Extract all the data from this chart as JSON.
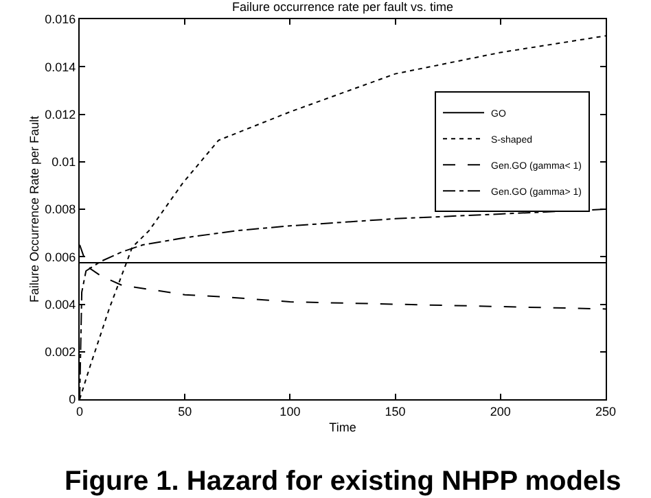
{
  "chart_data": {
    "type": "line",
    "title": "Failure occurrence rate per fault vs. time",
    "xlabel": "Time",
    "ylabel": "Failure Occurrence Rate per Fault",
    "annotations": [
      "Figure 1. Hazard for existing NHPP models"
    ],
    "xlim": [
      0,
      250
    ],
    "xticks": [
      0,
      50,
      100,
      150,
      200,
      250
    ],
    "ylim": [
      0,
      0.016
    ],
    "yticks": [
      0,
      0.002,
      0.004,
      0.006,
      0.008,
      0.01,
      0.012,
      0.014,
      0.016
    ],
    "grid": false,
    "legend": "top right",
    "marker": "none",
    "series": [
      {
        "name": "GO",
        "color": "#000000",
        "line_style": "solid",
        "x": [
          0,
          250
        ],
        "values": [
          0.00575,
          0.00575
        ]
      },
      {
        "name": "S-shaped",
        "color": "#000000",
        "line_style": "dotted",
        "x": [
          0,
          5,
          14,
          25,
          33,
          49,
          66,
          100,
          150,
          200,
          250
        ],
        "values": [
          0,
          0.0014,
          0.0038,
          0.0064,
          0.0071,
          0.0091,
          0.0109,
          0.0121,
          0.0137,
          0.0146,
          0.0153
        ]
      },
      {
        "name": "Gen.GO (gamma< 1)",
        "color": "#000000",
        "line_style": "dashed",
        "x": [
          0,
          2,
          5,
          10,
          20,
          35,
          50,
          70,
          100,
          150,
          200,
          250
        ],
        "values": [
          0.0065,
          0.006,
          0.0055,
          0.0052,
          0.0048,
          0.0046,
          0.0044,
          0.0043,
          0.0041,
          0.004,
          0.0039,
          0.0038
        ]
      },
      {
        "name": "Gen.GO (gamma> 1)",
        "color": "#000000",
        "line_style": "dashdot",
        "x": [
          0,
          1,
          3,
          10,
          20,
          30,
          50,
          75,
          100,
          150,
          200,
          250
        ],
        "values": [
          0,
          0.0045,
          0.0054,
          0.0058,
          0.0062,
          0.0065,
          0.0068,
          0.0071,
          0.0073,
          0.0076,
          0.0078,
          0.008
        ]
      }
    ]
  }
}
